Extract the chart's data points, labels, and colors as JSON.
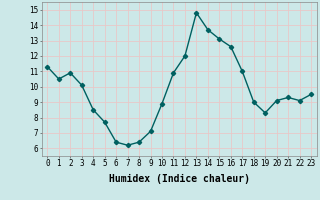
{
  "x": [
    0,
    1,
    2,
    3,
    4,
    5,
    6,
    7,
    8,
    9,
    10,
    11,
    12,
    13,
    14,
    15,
    16,
    17,
    18,
    19,
    20,
    21,
    22,
    23
  ],
  "y": [
    11.3,
    10.5,
    10.9,
    10.1,
    8.5,
    7.7,
    6.4,
    6.2,
    6.4,
    7.1,
    8.9,
    10.9,
    12.0,
    14.8,
    13.7,
    13.1,
    12.6,
    11.0,
    9.0,
    8.3,
    9.1,
    9.3,
    9.1,
    9.5
  ],
  "line_color": "#006060",
  "marker": "D",
  "markersize": 2.2,
  "linewidth": 1.0,
  "xlabel": "Humidex (Indice chaleur)",
  "xlabel_fontsize": 7,
  "xlim": [
    -0.5,
    23.5
  ],
  "ylim": [
    5.5,
    15.5
  ],
  "yticks": [
    6,
    7,
    8,
    9,
    10,
    11,
    12,
    13,
    14,
    15
  ],
  "xticks": [
    0,
    1,
    2,
    3,
    4,
    5,
    6,
    7,
    8,
    9,
    10,
    11,
    12,
    13,
    14,
    15,
    16,
    17,
    18,
    19,
    20,
    21,
    22,
    23
  ],
  "xtick_labels": [
    "0",
    "1",
    "2",
    "3",
    "4",
    "5",
    "6",
    "7",
    "8",
    "9",
    "10",
    "11",
    "12",
    "13",
    "14",
    "15",
    "16",
    "17",
    "18",
    "19",
    "20",
    "21",
    "22",
    "23"
  ],
  "bg_color": "#cce8e8",
  "grid_color": "#e8c8c8",
  "tick_fontsize": 5.5,
  "spine_color": "#888888"
}
